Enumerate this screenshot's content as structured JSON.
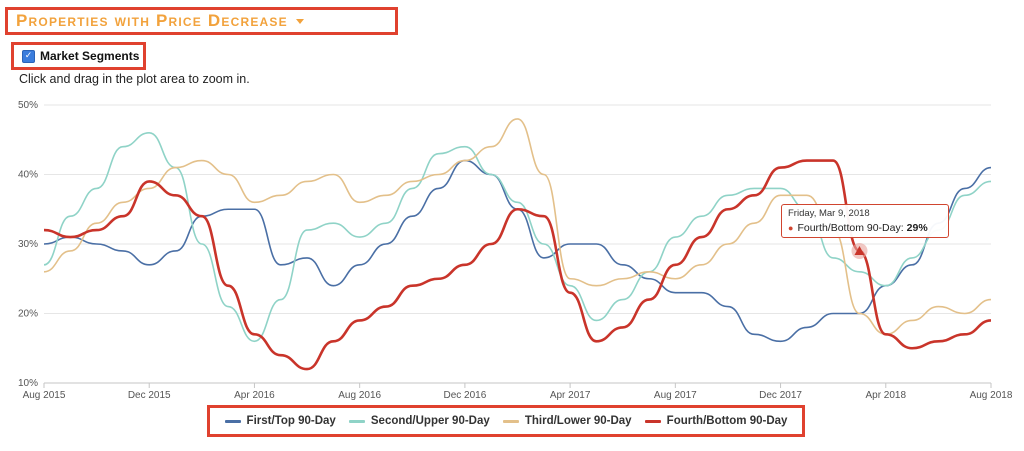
{
  "header": {
    "title": "Properties with Price Decrease"
  },
  "segments": {
    "label": "Market Segments",
    "checked": true
  },
  "hint": "Click and drag in the plot area to zoom in.",
  "colors": {
    "first": "#4a6fa5",
    "second": "#8fd3c7",
    "third": "#e3c08a",
    "fourth": "#c9342a",
    "accent": "#f2a23c",
    "frame": "#e0412f"
  },
  "tooltip": {
    "date": "Friday, Mar 9, 2018",
    "series": "Fourth/Bottom 90-Day:",
    "value": "29%"
  },
  "chart_data": {
    "type": "line",
    "ylim": [
      10,
      50
    ],
    "yticks": [
      "10%",
      "20%",
      "30%",
      "40%",
      "50%"
    ],
    "xticks": [
      "Aug 2015",
      "Dec 2015",
      "Apr 2016",
      "Aug 2016",
      "Dec 2016",
      "Apr 2017",
      "Aug 2017",
      "Dec 2017",
      "Apr 2018",
      "Aug 2018"
    ],
    "x": [
      "Aug 2015",
      "Sep 2015",
      "Oct 2015",
      "Nov 2015",
      "Dec 2015",
      "Jan 2016",
      "Feb 2016",
      "Mar 2016",
      "Apr 2016",
      "May 2016",
      "Jun 2016",
      "Jul 2016",
      "Aug 2016",
      "Sep 2016",
      "Oct 2016",
      "Nov 2016",
      "Dec 2016",
      "Jan 2017",
      "Feb 2017",
      "Mar 2017",
      "Apr 2017",
      "May 2017",
      "Jun 2017",
      "Jul 2017",
      "Aug 2017",
      "Sep 2017",
      "Oct 2017",
      "Nov 2017",
      "Dec 2017",
      "Jan 2018",
      "Feb 2018",
      "Mar 2018",
      "Apr 2018",
      "May 2018",
      "Jun 2018",
      "Jul 2018",
      "Aug 2018"
    ],
    "series": [
      {
        "name": "First/Top 90-Day",
        "color_key": "first",
        "values": [
          30,
          31,
          30,
          29,
          27,
          29,
          34,
          35,
          35,
          27,
          28,
          24,
          27,
          30,
          34,
          38,
          42,
          40,
          35,
          28,
          30,
          30,
          27,
          25,
          23,
          23,
          21,
          17,
          16,
          18,
          20,
          20,
          24,
          27,
          33,
          38,
          41
        ]
      },
      {
        "name": "Second/Upper 90-Day",
        "color_key": "second",
        "values": [
          27,
          34,
          38,
          44,
          46,
          41,
          30,
          21,
          16,
          22,
          32,
          33,
          31,
          33,
          38,
          43,
          44,
          40,
          36,
          30,
          24,
          19,
          22,
          26,
          31,
          34,
          37,
          38,
          38,
          35,
          28,
          26,
          24,
          28,
          32,
          37,
          39
        ]
      },
      {
        "name": "Third/Lower 90-Day",
        "color_key": "third",
        "values": [
          26,
          29,
          33,
          36,
          38,
          41,
          42,
          40,
          36,
          37,
          39,
          40,
          36,
          37,
          39,
          40,
          42,
          44,
          48,
          40,
          25,
          24,
          25,
          26,
          25,
          27,
          30,
          33,
          37,
          37,
          32,
          20,
          17,
          19,
          21,
          20,
          22
        ]
      },
      {
        "name": "Fourth/Bottom 90-Day",
        "color_key": "fourth",
        "values": [
          32,
          31,
          32,
          34,
          39,
          37,
          34,
          24,
          17,
          14,
          12,
          16,
          19,
          21,
          24,
          25,
          27,
          30,
          35,
          34,
          23,
          16,
          18,
          22,
          27,
          31,
          35,
          37,
          41,
          42,
          42,
          29,
          17,
          15,
          16,
          17,
          19
        ]
      }
    ],
    "highlight": {
      "series": 3,
      "x": "Mar 2018",
      "value": 29
    }
  }
}
